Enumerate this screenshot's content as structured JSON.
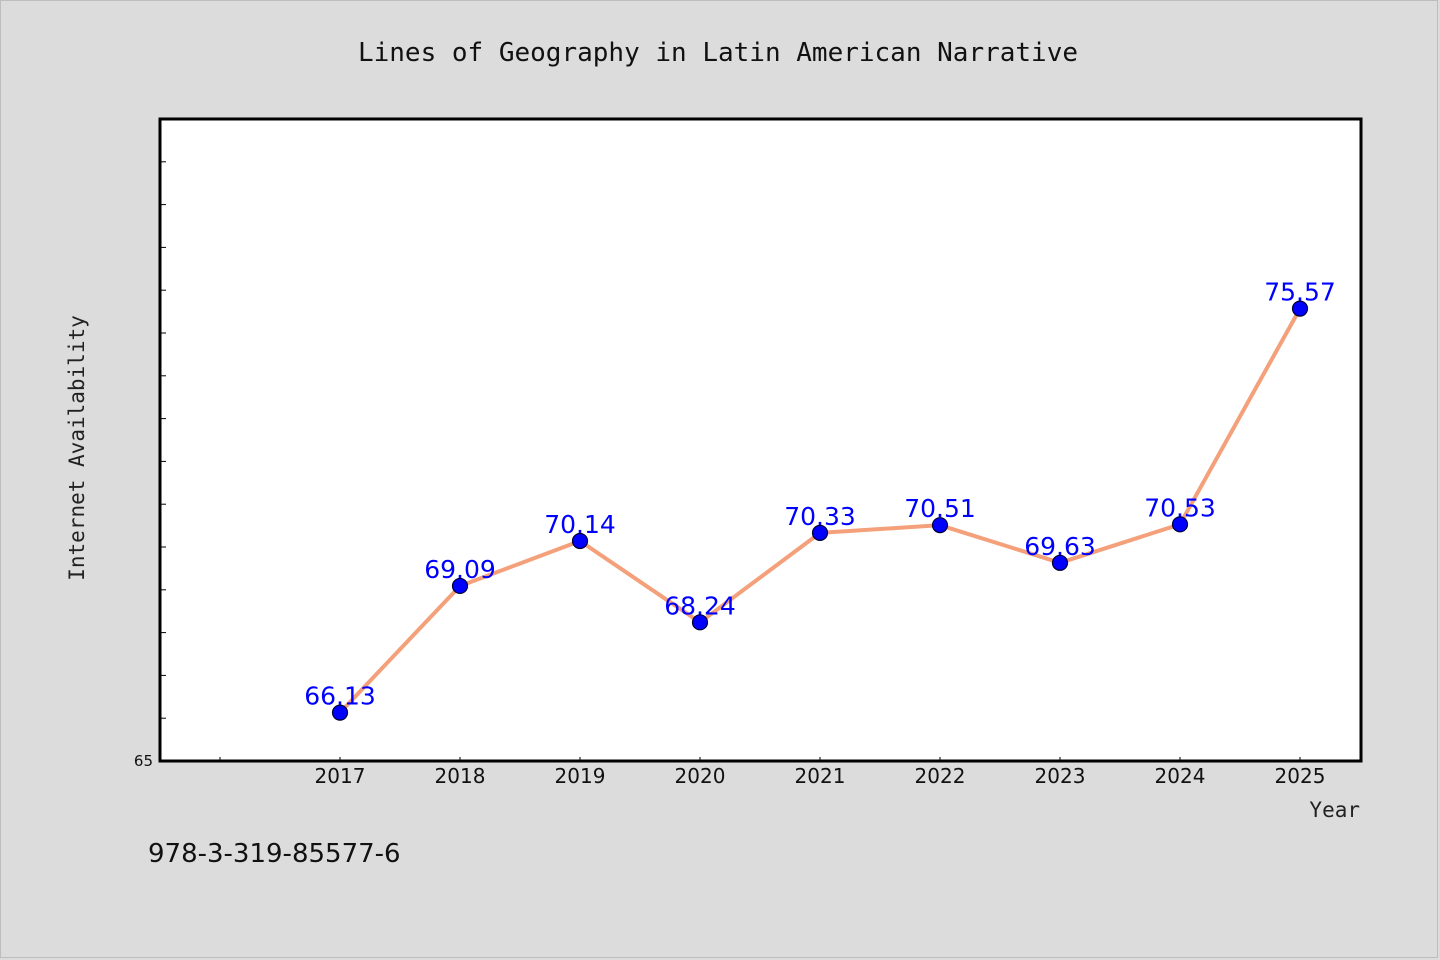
{
  "chart_data": {
    "type": "line",
    "title": "Lines of Geography in Latin American Narrative",
    "xlabel": "Year",
    "ylabel": "Internet Availability",
    "categories": [
      "2017",
      "2018",
      "2019",
      "2020",
      "2021",
      "2022",
      "2023",
      "2024",
      "2025"
    ],
    "series": [
      {
        "values": [
          66.13,
          69.09,
          70.14,
          68.24,
          70.33,
          70.51,
          69.63,
          70.53,
          75.57
        ],
        "labels": [
          "66.13",
          "69.09",
          "70.14",
          "68.24",
          "70.33",
          "70.51",
          "69.63",
          "70.53",
          "75.57"
        ]
      }
    ],
    "ylim": [
      65,
      80
    ],
    "y_tick_labels": [
      "65"
    ],
    "grid": false,
    "line_color": "#f4a07a",
    "marker_color": "#0000ff",
    "label_color": "#0000ff"
  },
  "footer": {
    "isbn": "978-3-319-85577-6"
  }
}
